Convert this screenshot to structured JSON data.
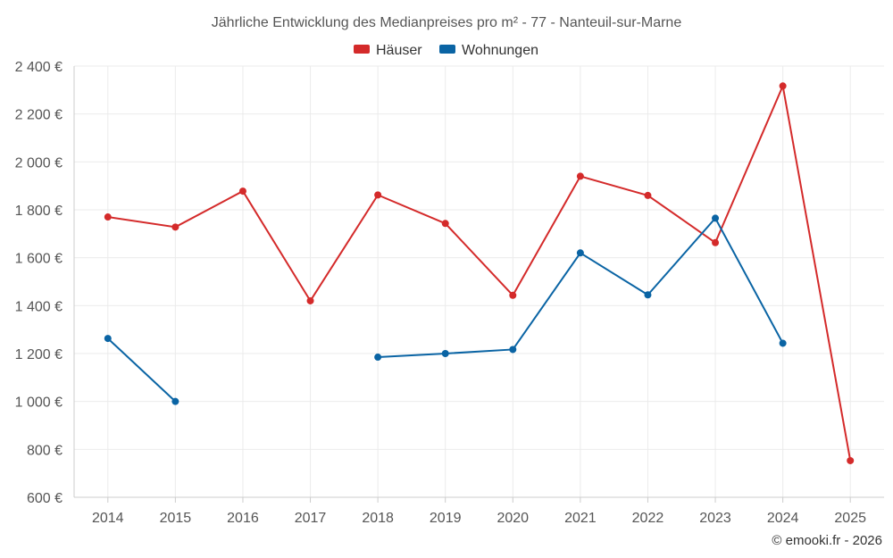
{
  "chart_data": {
    "type": "line",
    "title": "Jährliche Entwicklung des Medianpreises pro m² - 77 - Nanteuil-sur-Marne",
    "categories": [
      "2014",
      "2015",
      "2016",
      "2017",
      "2018",
      "2019",
      "2020",
      "2021",
      "2022",
      "2023",
      "2024",
      "2025"
    ],
    "ylim": [
      600,
      2400
    ],
    "yticks": [
      600,
      800,
      1000,
      1200,
      1400,
      1600,
      1800,
      2000,
      2200,
      2400
    ],
    "ytick_labels": [
      "600 €",
      "800 €",
      "1 000 €",
      "1 200 €",
      "1 400 €",
      "1 600 €",
      "1 800 €",
      "2 000 €",
      "2 200 €",
      "2 400 €"
    ],
    "xlabel": "",
    "ylabel": "",
    "grid": true,
    "legend_position": "top-center",
    "series": [
      {
        "name": "Häuser",
        "color": "#d42a2a",
        "values": [
          1770,
          1728,
          1878,
          1420,
          1862,
          1743,
          1443,
          1940,
          1860,
          1663,
          2317,
          753
        ]
      },
      {
        "name": "Wohnungen",
        "color": "#0a64a4",
        "values": [
          1263,
          1000,
          null,
          null,
          1185,
          1200,
          1217,
          1620,
          1445,
          1765,
          1243,
          null
        ]
      }
    ],
    "credit": "© emooki.fr - 2026"
  }
}
